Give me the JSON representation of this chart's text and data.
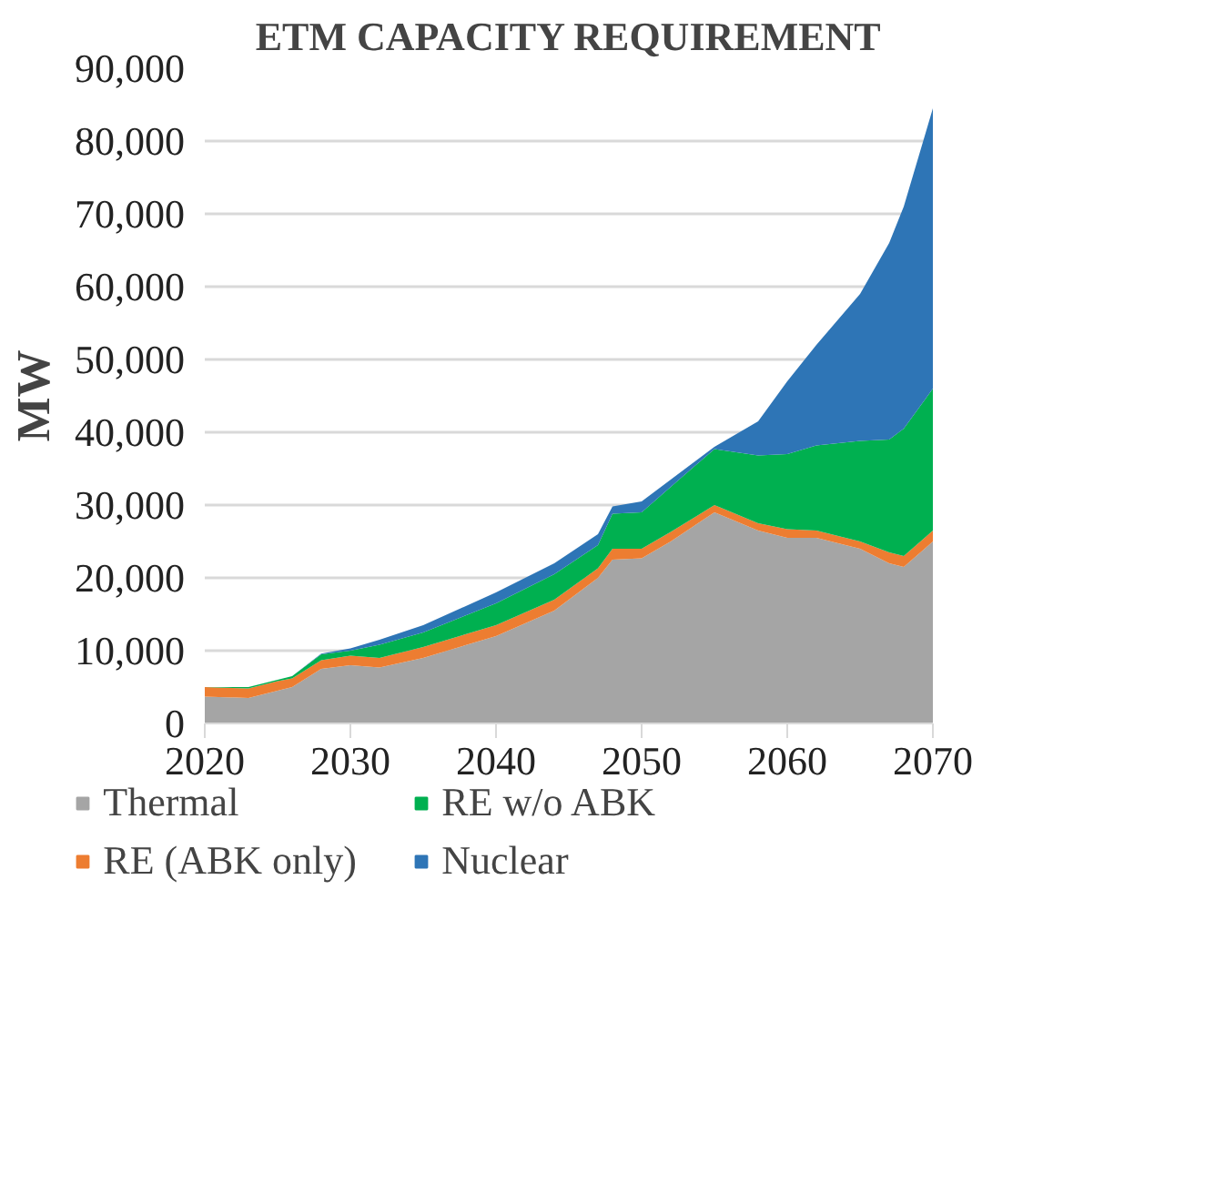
{
  "chart_data": {
    "type": "area",
    "stacked": true,
    "title": "ETM CAPACITY REQUIREMENT",
    "ylabel": "MW",
    "x": [
      2020,
      2023,
      2025,
      2026,
      2028,
      2030,
      2032,
      2035,
      2040,
      2044,
      2047,
      2048,
      2050,
      2052,
      2055,
      2058,
      2060,
      2062,
      2065,
      2067,
      2068,
      2070
    ],
    "series": [
      {
        "name": "Thermal",
        "color": "#a5a5a5",
        "values": [
          3700,
          3500,
          4500,
          5000,
          7500,
          8000,
          7700,
          9000,
          12000,
          15500,
          20000,
          22500,
          22700,
          25000,
          29000,
          26500,
          25500,
          25500,
          24000,
          22000,
          21500,
          25000
        ]
      },
      {
        "name": "RE (ABK only)",
        "color": "#ed7d31",
        "values": [
          1300,
          1300,
          1300,
          1200,
          1200,
          1300,
          1300,
          1500,
          1500,
          1500,
          1300,
          1500,
          1300,
          1300,
          1000,
          1000,
          1200,
          1000,
          1000,
          1500,
          1500,
          1500
        ]
      },
      {
        "name": "RE w/o ABK",
        "color": "#00b050",
        "values": [
          0,
          200,
          200,
          300,
          800,
          700,
          1800,
          2000,
          3000,
          3500,
          3200,
          4800,
          5000,
          6200,
          7700,
          9300,
          10300,
          11700,
          13800,
          15500,
          17500,
          19500
        ]
      },
      {
        "name": "Nuclear",
        "color": "#2e75b6",
        "values": [
          0,
          0,
          0,
          0,
          100,
          300,
          700,
          1000,
          1500,
          1500,
          1500,
          1000,
          1500,
          1000,
          300,
          4700,
          10000,
          13800,
          20200,
          27000,
          30500,
          38500
        ]
      }
    ],
    "xlim": [
      2020,
      2070
    ],
    "xticks": [
      2020,
      2030,
      2040,
      2050,
      2060,
      2070
    ],
    "ylim": [
      0,
      90000
    ],
    "yticks": [
      {
        "value": 0,
        "label": "0"
      },
      {
        "value": 10000,
        "label": "10,000"
      },
      {
        "value": 20000,
        "label": "20,000"
      },
      {
        "value": 30000,
        "label": "30,000"
      },
      {
        "value": 40000,
        "label": "40,000"
      },
      {
        "value": 50000,
        "label": "50,000"
      },
      {
        "value": 60000,
        "label": "60,000"
      },
      {
        "value": 70000,
        "label": "70,000"
      },
      {
        "value": 80000,
        "label": "80,000"
      },
      {
        "value": 90000,
        "label": "90,000"
      }
    ],
    "grid": "y",
    "legend": "bottom"
  }
}
